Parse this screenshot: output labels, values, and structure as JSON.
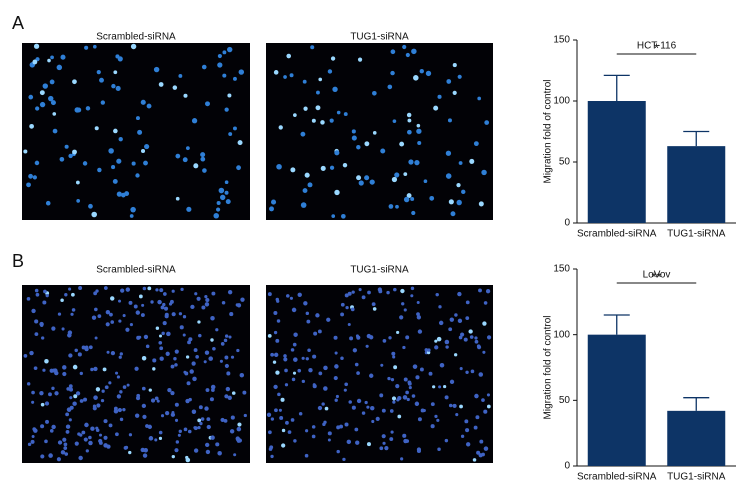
{
  "panels": [
    {
      "label": "A",
      "images": [
        "Scrambled-siRNA",
        "TUG1-siRNA"
      ]
    },
    {
      "label": "B",
      "images": [
        "Scrambled-siRNA",
        "TUG1-siRNA"
      ]
    }
  ],
  "chart_data": [
    {
      "type": "bar",
      "title": "HCT-116",
      "ylabel": "Migration fold of control",
      "categories": [
        "Scrambled-siRNA",
        "TUG1-siRNA"
      ],
      "values": [
        100,
        63
      ],
      "errors": [
        21,
        12
      ],
      "color": "#0d3466",
      "ylim": [
        0,
        150
      ],
      "yticks": [
        0,
        50,
        100,
        150
      ],
      "annotation": "*"
    },
    {
      "type": "bar",
      "title": "LoVov",
      "ylabel": "Migration fold of control",
      "categories": [
        "Scrambled-siRNA",
        "TUG1-siRNA"
      ],
      "values": [
        100,
        42
      ],
      "errors": [
        15,
        10
      ],
      "color": "#0d3466",
      "ylim": [
        0,
        150
      ],
      "yticks": [
        0,
        50,
        100,
        150
      ],
      "annotation": "**"
    }
  ]
}
